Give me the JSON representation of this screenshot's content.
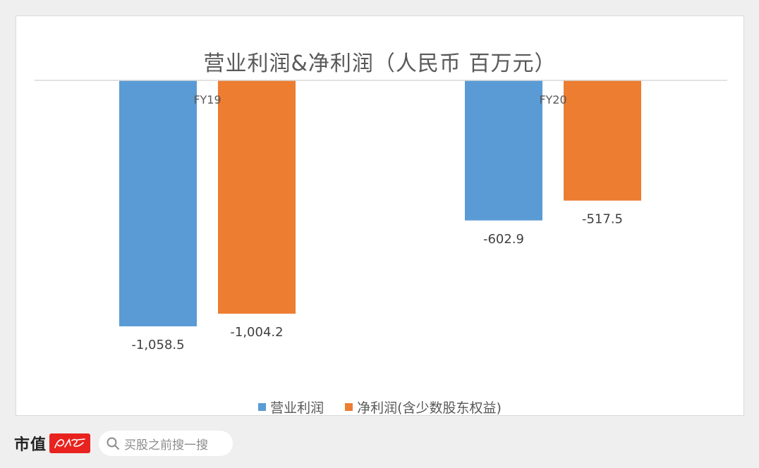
{
  "chart_data": {
    "type": "bar",
    "title": "营业利润&净利润（人民币 百万元）",
    "categories": [
      "FY19",
      "FY20"
    ],
    "series": [
      {
        "name": "营业利润",
        "values": [
          -1058.5,
          -602.9
        ],
        "labels": [
          "-1,058.5",
          "-602.9"
        ],
        "color": "#5b9bd5"
      },
      {
        "name": "净利润(含少数股东权益)",
        "values": [
          -1004.2,
          -517.5
        ],
        "labels": [
          "-1,004.2",
          "-517.5"
        ],
        "color": "#ed7d31"
      }
    ],
    "ylim": [
      -1058.5,
      0
    ],
    "grid": false,
    "legend": "bottom"
  },
  "footer": {
    "brand": "市值",
    "badge": "风云",
    "search_placeholder": "买股之前搜一搜"
  }
}
